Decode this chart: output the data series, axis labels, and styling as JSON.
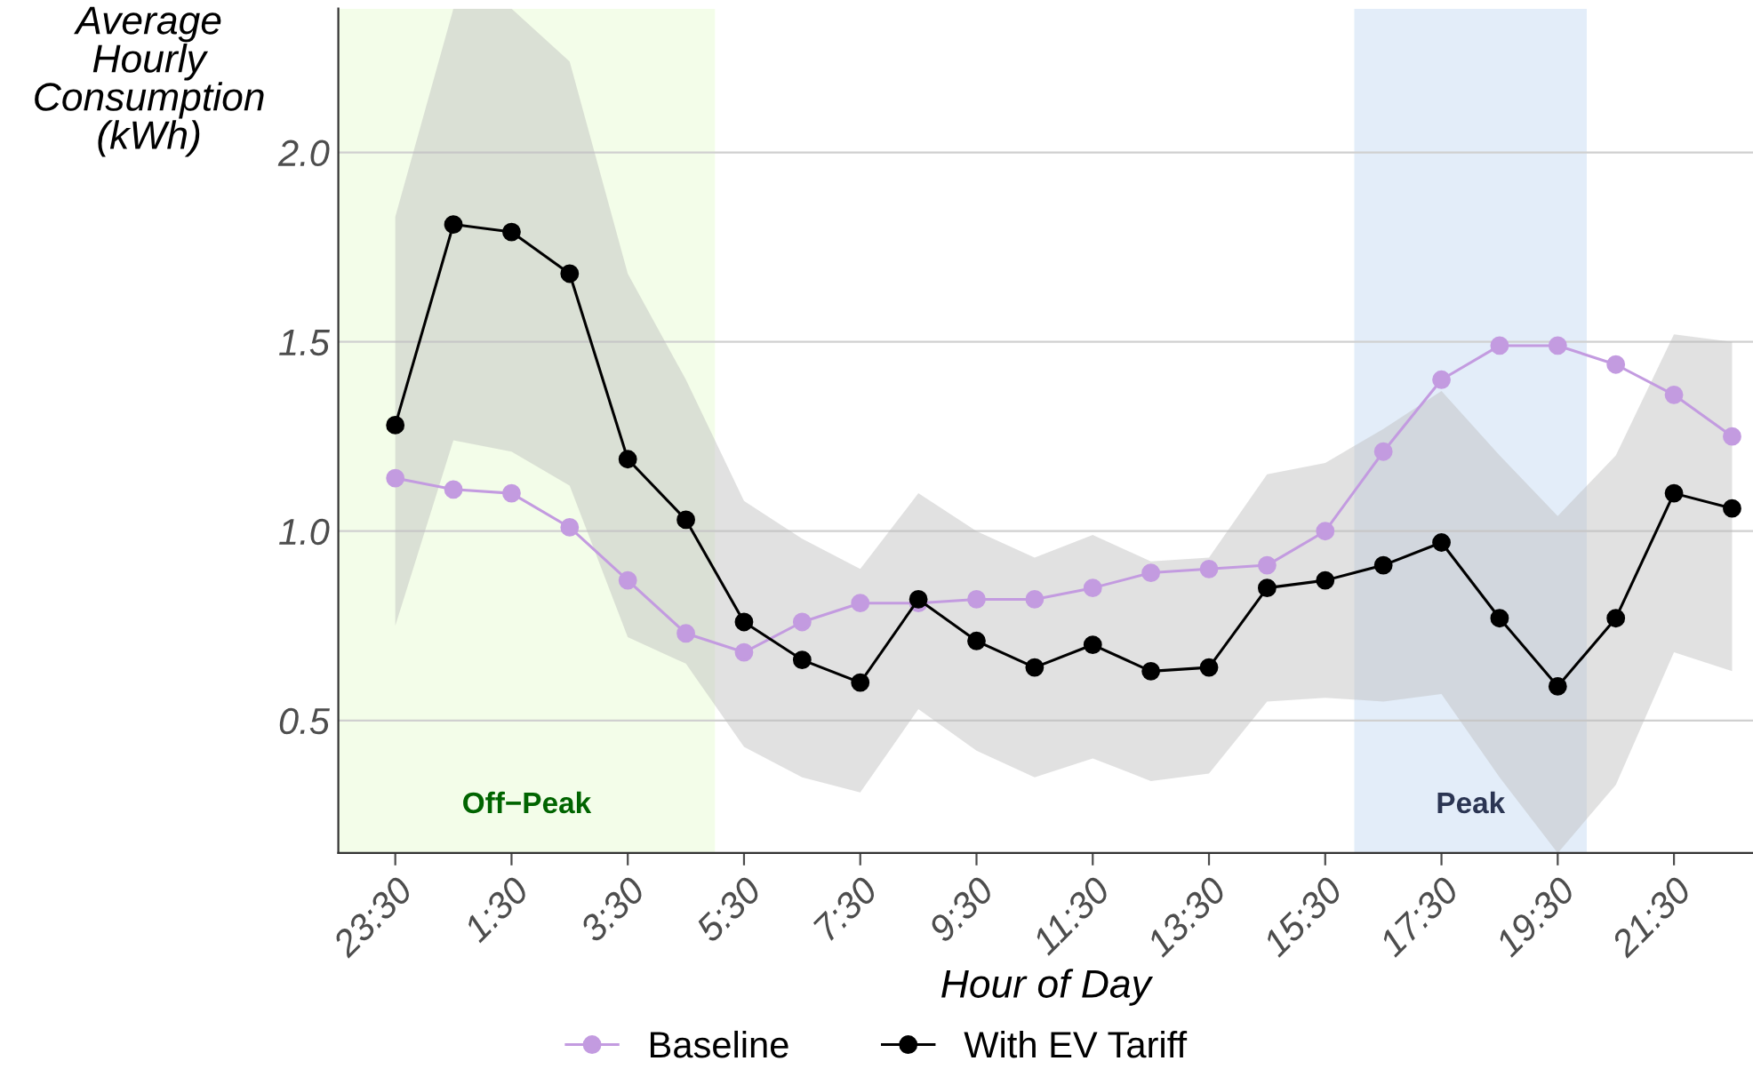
{
  "chart_data": {
    "type": "line",
    "xlabel": "Hour of Day",
    "ylabel": "Average\nHourly\nConsumption\n(kWh)",
    "categories": [
      "23:30",
      null,
      "1:30",
      null,
      "3:30",
      null,
      "5:30",
      null,
      "7:30",
      null,
      "9:30",
      null,
      "11:30",
      null,
      "13:30",
      null,
      "15:30",
      null,
      "17:30",
      null,
      "19:30",
      null,
      "21:30",
      null
    ],
    "series": [
      {
        "name": "Baseline",
        "color": "#c39be0",
        "values": [
          1.14,
          1.11,
          1.1,
          1.01,
          0.87,
          0.73,
          0.68,
          0.76,
          0.81,
          0.81,
          0.82,
          0.82,
          0.85,
          0.89,
          0.9,
          0.91,
          1.0,
          1.21,
          1.4,
          1.49,
          1.49,
          1.44,
          1.36,
          1.25
        ]
      },
      {
        "name": "With EV Tariff",
        "color": "#000000",
        "values": [
          1.28,
          1.81,
          1.79,
          1.68,
          1.19,
          1.03,
          0.76,
          0.66,
          0.6,
          0.82,
          0.71,
          0.64,
          0.7,
          0.63,
          0.64,
          0.85,
          0.87,
          0.91,
          0.97,
          0.77,
          0.59,
          0.77,
          1.1,
          1.06
        ],
        "upper": [
          1.83,
          2.38,
          2.38,
          2.24,
          1.68,
          1.4,
          1.08,
          0.98,
          0.9,
          1.1,
          1.0,
          0.93,
          0.99,
          0.92,
          0.93,
          1.15,
          1.18,
          1.27,
          1.37,
          1.2,
          1.04,
          1.2,
          1.52,
          1.5
        ],
        "lower": [
          0.75,
          1.24,
          1.21,
          1.12,
          0.72,
          0.65,
          0.43,
          0.35,
          0.31,
          0.53,
          0.42,
          0.35,
          0.4,
          0.34,
          0.36,
          0.55,
          0.56,
          0.55,
          0.57,
          0.35,
          0.15,
          0.33,
          0.68,
          0.63
        ]
      }
    ],
    "annotations": [
      "Off−Peak",
      "Peak"
    ],
    "ylim": [
      0.15,
      2.38
    ],
    "yticks": [
      0.5,
      {
        "value": 1.0,
        "label": "1.0"
      },
      1.5,
      {
        "value": 2.0,
        "label": "2.0"
      }
    ],
    "grid": "y",
    "legend": "bottom",
    "marker": "circle",
    "line_style": "solid"
  }
}
